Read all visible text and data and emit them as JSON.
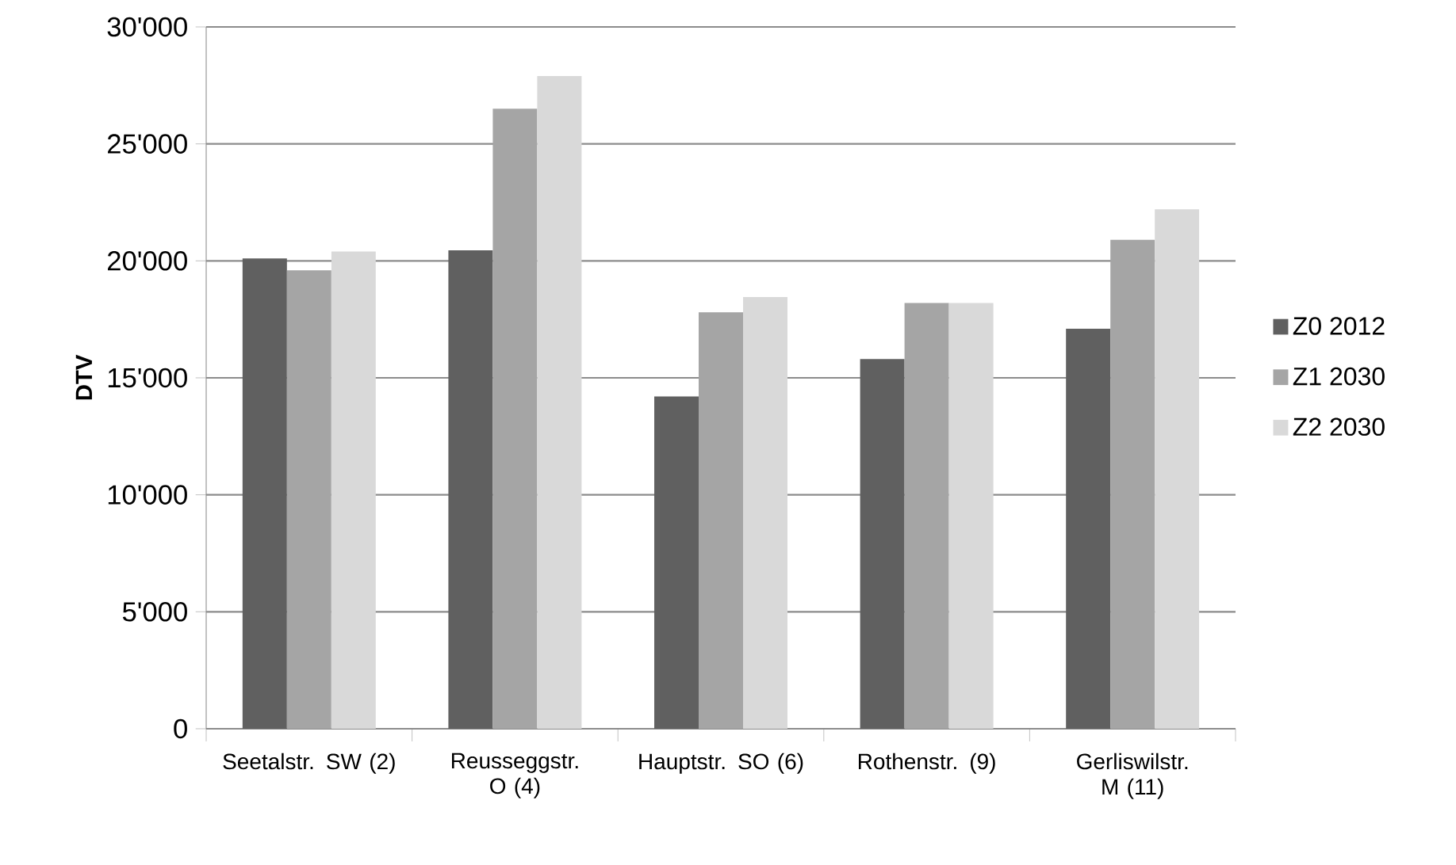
{
  "chart_data": {
    "type": "bar",
    "ylabel": "DTV",
    "categories": [
      "Seetalstr. SW (2)",
      "Reusseggstr. O (4)",
      "Hauptstr. SO (6)",
      "Rothenstr. (9)",
      "Gerliswilstr. M (11)"
    ],
    "series": [
      {
        "name": "Z0 2012",
        "color": "#606060",
        "values": [
          20100,
          20450,
          14200,
          15800,
          17100
        ]
      },
      {
        "name": "Z1 2030",
        "color": "#a5a5a5",
        "values": [
          19600,
          26500,
          17800,
          18200,
          20900
        ]
      },
      {
        "name": "Z2 2030",
        "color": "#d9d9d9",
        "values": [
          20400,
          27900,
          18450,
          18200,
          22200
        ]
      }
    ],
    "ylim": [
      0,
      30000
    ],
    "yticks": [
      {
        "value": 0,
        "label": "0"
      },
      {
        "value": 5000,
        "label": "5'000"
      },
      {
        "value": 10000,
        "label": "10'000"
      },
      {
        "value": 15000,
        "label": "15'000"
      },
      {
        "value": 20000,
        "label": "20'000"
      },
      {
        "value": 25000,
        "label": "25'000"
      },
      {
        "value": 30000,
        "label": "30'000"
      }
    ],
    "grid": "y",
    "legend": "right"
  }
}
